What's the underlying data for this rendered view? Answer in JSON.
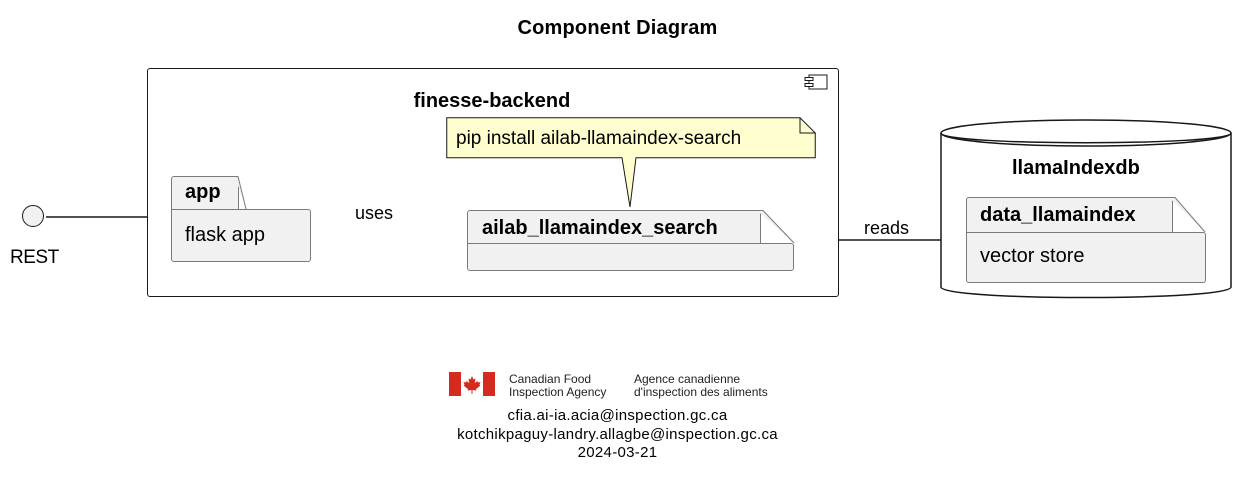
{
  "diagram": {
    "title": "Component Diagram",
    "component": {
      "name": "finesse-backend",
      "icon": "component-icon"
    },
    "interface": {
      "label": "REST"
    },
    "packages": {
      "app": {
        "name": "app",
        "content": "flask app"
      },
      "search": {
        "name": "ailab_llamaindex_search",
        "content": ""
      },
      "data": {
        "name": "data_llamaindex",
        "content": "vector store"
      }
    },
    "note": {
      "text": "pip install ailab-llamaindex-search"
    },
    "database": {
      "name": "llamaIndexdb"
    },
    "edges": {
      "uses": "uses",
      "reads": "reads"
    },
    "colors": {
      "package_fill": "#f1f1f1",
      "note_fill": "#fefece",
      "stroke": "#181818",
      "flag_red": "#d52b1e"
    }
  },
  "footer": {
    "agency_en_line1": "Canadian Food",
    "agency_en_line2": "Inspection Agency",
    "agency_fr_line1": "Agence canadienne",
    "agency_fr_line2": "d'inspection des aliments",
    "email1": "cfia.ai-ia.acia@inspection.gc.ca",
    "email2": "kotchikpaguy-landry.allagbe@inspection.gc.ca",
    "date": "2024-03-21"
  }
}
